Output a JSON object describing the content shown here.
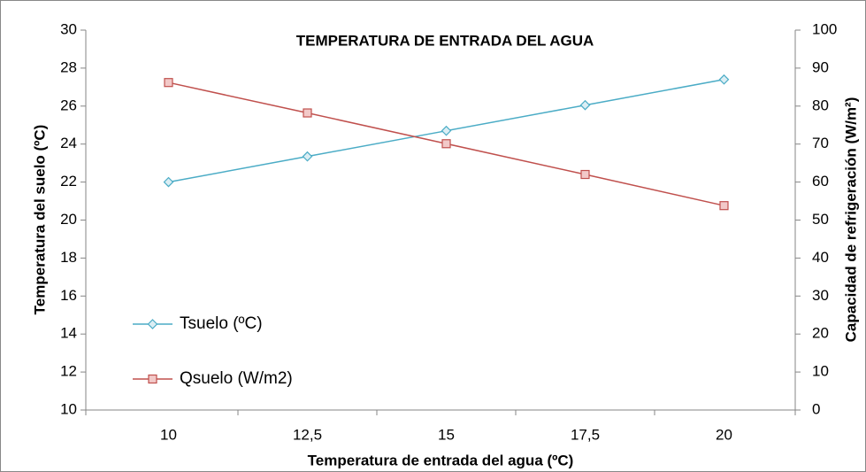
{
  "chart_data": {
    "type": "line",
    "title": "TEMPERATURA DE ENTRADA DEL AGUA",
    "x_label": "Temperatura de entrada del agua (ºC)",
    "y_label": "Temperatura del suelo (ºC)",
    "y2_label": "Capacidad de refrigeración (W/m²)",
    "categories": [
      "10",
      "12,5",
      "15",
      "17,5",
      "20"
    ],
    "series": [
      {
        "name": "Tsuelo (ºC)",
        "color": "#4bacc6",
        "marker": "diamond",
        "values": [
          22.0,
          23.35,
          24.7,
          26.05,
          27.4
        ]
      },
      {
        "name": "Qsuelo (W/m2)",
        "color": "#c0504d",
        "marker": "square",
        "axis": "y2",
        "values": [
          86.2,
          78.2,
          70.1,
          62.0,
          53.8
        ]
      }
    ],
    "ylim": [
      10,
      30
    ],
    "yticks": [
      10,
      12,
      14,
      16,
      18,
      20,
      22,
      24,
      26,
      28,
      30
    ],
    "y2lim": [
      0,
      100
    ],
    "y2ticks": [
      0,
      10,
      20,
      30,
      40,
      50,
      60,
      70,
      80,
      90,
      100
    ],
    "grid": false,
    "legend": "lower left"
  }
}
